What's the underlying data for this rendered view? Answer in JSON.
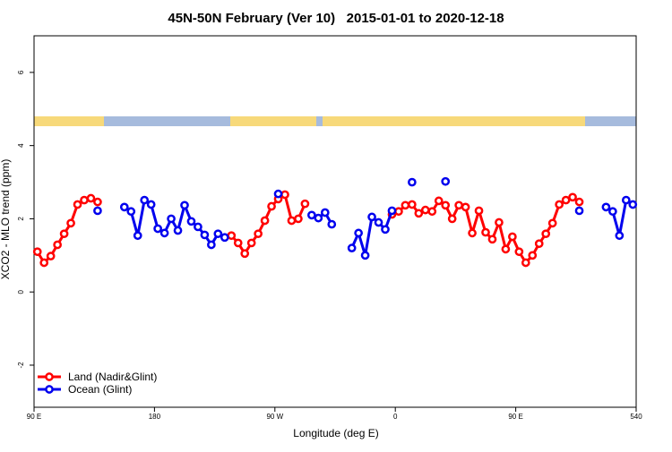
{
  "chart_data": {
    "type": "line",
    "title": "45N-50N February (Ver 10)   2015-01-01 to 2020-12-18",
    "x_label": "Longitude (deg E)",
    "y_label": "XCO2 - MLO trend (ppm)",
    "x": [
      92.5,
      97.5,
      102.5,
      107.5,
      112.5,
      117.5,
      122.5,
      127.5,
      132.5,
      137.5,
      142.5,
      147.5,
      152.5,
      157.5,
      162.5,
      167.5,
      172.5,
      177.5,
      182.5,
      187.5,
      192.5,
      197.5,
      202.5,
      207.5,
      212.5,
      217.5,
      222.5,
      227.5,
      232.5,
      237.5,
      242.5,
      247.5,
      252.5,
      257.5,
      262.5,
      267.5,
      272.5,
      277.5,
      282.5,
      287.5,
      292.5,
      297.5,
      302.5,
      307.5,
      312.5,
      317.5,
      322.5,
      327.5,
      332.5,
      337.5,
      342.5,
      347.5,
      352.5,
      357.5,
      362.5,
      367.5,
      372.5,
      377.5,
      382.5,
      387.5,
      392.5,
      397.5,
      402.5,
      407.5,
      412.5,
      417.5,
      422.5,
      427.5,
      432.5,
      437.5,
      442.5,
      447.5,
      452.5,
      457.5,
      462.5,
      467.5,
      472.5,
      477.5,
      482.5,
      487.5,
      492.5,
      497.5,
      502.5,
      507.5,
      512.5,
      517.5,
      522.5,
      527.5,
      532.5,
      537.5
    ],
    "series": [
      {
        "name": "Land (Nadir&Glint)",
        "color": "#ff0000",
        "values": [
          1.1,
          0.8,
          0.98,
          1.29,
          1.59,
          1.88,
          2.39,
          2.51,
          2.56,
          2.46,
          null,
          null,
          null,
          null,
          null,
          null,
          null,
          null,
          null,
          null,
          null,
          null,
          null,
          null,
          null,
          null,
          null,
          null,
          null,
          1.54,
          1.34,
          1.05,
          1.34,
          1.59,
          1.95,
          2.34,
          2.54,
          2.66,
          1.95,
          2.0,
          2.41,
          null,
          null,
          null,
          null,
          null,
          null,
          null,
          null,
          null,
          null,
          null,
          null,
          2.12,
          2.2,
          2.37,
          2.39,
          2.15,
          2.24,
          2.2,
          2.49,
          2.37,
          2.0,
          2.37,
          2.32,
          1.61,
          2.22,
          1.63,
          1.44,
          1.9,
          1.17,
          1.51,
          1.1,
          0.8,
          1.0,
          1.32,
          1.59,
          1.88,
          2.39,
          2.51,
          2.59,
          2.46,
          null,
          null,
          null,
          null,
          null,
          null,
          null,
          null
        ]
      },
      {
        "name": "Ocean (Glint)",
        "color": "#0000ee",
        "values": [
          null,
          null,
          null,
          null,
          null,
          null,
          null,
          null,
          null,
          2.22,
          null,
          null,
          null,
          2.32,
          2.2,
          1.54,
          2.51,
          2.39,
          1.73,
          1.61,
          2.0,
          1.68,
          2.37,
          1.93,
          1.78,
          1.56,
          1.29,
          1.59,
          1.49,
          null,
          null,
          null,
          null,
          null,
          null,
          null,
          2.68,
          null,
          null,
          null,
          null,
          2.1,
          2.02,
          2.17,
          1.85,
          null,
          null,
          1.2,
          1.61,
          1.0,
          2.05,
          1.9,
          1.71,
          2.22,
          null,
          null,
          3.0,
          null,
          null,
          null,
          null,
          3.02,
          null,
          null,
          null,
          null,
          null,
          null,
          null,
          null,
          null,
          null,
          null,
          null,
          null,
          null,
          null,
          null,
          null,
          null,
          null,
          2.22,
          null,
          null,
          null,
          2.32,
          2.2,
          1.54,
          2.51,
          2.39
        ]
      }
    ],
    "xlim": [
      90,
      540
    ],
    "xticks": [
      {
        "value": 90,
        "label": "90 E"
      },
      180,
      {
        "value": 270,
        "label": "90 W"
      },
      {
        "value": 360,
        "label": "0"
      },
      {
        "value": 450,
        "label": "90 E"
      },
      540
    ],
    "ylim": [
      -3.15,
      7
    ],
    "yticks": [
      -2,
      0,
      2,
      4,
      6
    ],
    "legend": "bottomleft"
  }
}
